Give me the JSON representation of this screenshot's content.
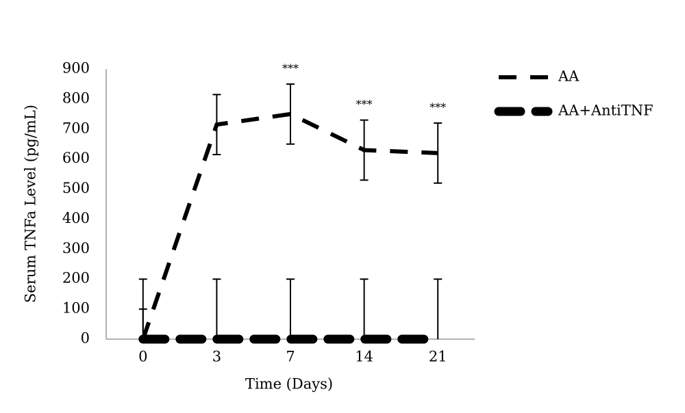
{
  "chart_data": {
    "type": "line",
    "x_label": "Time (Days)",
    "y_label": "Serum TNFa Level (pg/mL)",
    "categories": [
      "0",
      "3",
      "7",
      "14",
      "21"
    ],
    "series": [
      {
        "name": "AA",
        "color": "#000000",
        "values": [
          0,
          715,
          750,
          630,
          620
        ],
        "errors": [
          100,
          100,
          100,
          100,
          100
        ],
        "style": "dashed"
      },
      {
        "name": "AA+AntiTNF",
        "color": "#000000",
        "values": [
          0,
          0,
          0,
          0,
          0
        ],
        "errors": [
          200,
          200,
          200,
          200,
          200
        ],
        "style": "thick-dashed"
      }
    ],
    "annotations": [
      {
        "x": "7",
        "text": "***"
      },
      {
        "x": "14",
        "text": "***"
      },
      {
        "x": "21",
        "text": "***"
      }
    ],
    "ylim": [
      0,
      900
    ],
    "yticks": [
      0,
      100,
      200,
      300,
      400,
      500,
      600,
      700,
      800,
      900
    ],
    "grid": false,
    "legend": "right"
  }
}
